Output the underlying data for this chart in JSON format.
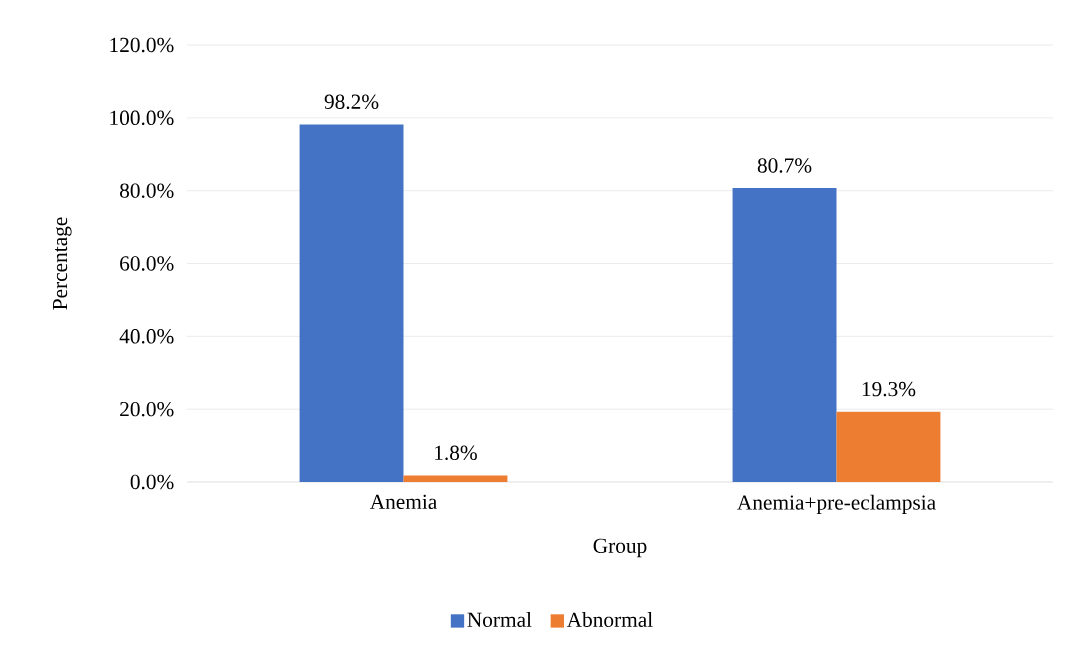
{
  "chart_data": {
    "type": "bar",
    "xlabel": "Group",
    "ylabel": "Percentage",
    "categories": [
      "Anemia",
      "Anemia+pre-eclampsia"
    ],
    "series": [
      {
        "name": "Normal",
        "color": "#4472c4",
        "values": [
          98.2,
          80.7
        ],
        "value_labels": [
          "98.2%",
          "80.7%"
        ]
      },
      {
        "name": "Abnormal",
        "color": "#ed7d31",
        "values": [
          1.8,
          19.3
        ],
        "value_labels": [
          "1.8%",
          "19.3%"
        ]
      }
    ],
    "ylim": [
      0,
      120
    ],
    "yticks": [
      {
        "value": 0,
        "label": "0.0%"
      },
      {
        "value": 20,
        "label": "20.0%"
      },
      {
        "value": 40,
        "label": "40.0%"
      },
      {
        "value": 60,
        "label": "60.0%"
      },
      {
        "value": 80,
        "label": "80.0%"
      },
      {
        "value": 100,
        "label": "100.0%"
      },
      {
        "value": 120,
        "label": "120.0%"
      }
    ],
    "grid": "y",
    "legend": "bottom"
  }
}
